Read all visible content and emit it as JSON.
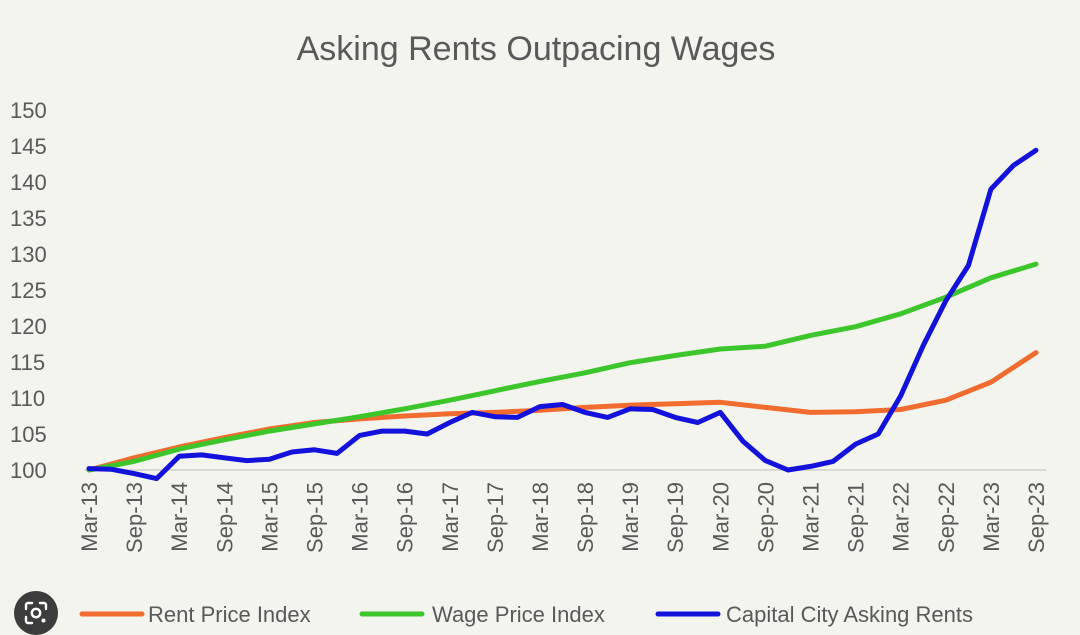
{
  "chart_data": {
    "type": "line",
    "title": "Asking Rents Outpacing Wages",
    "xlabel": "",
    "ylabel": "",
    "ylim": [
      100,
      150
    ],
    "yticks": [
      "100",
      "105",
      "110",
      "115",
      "120",
      "125",
      "130",
      "135",
      "140",
      "145",
      "150"
    ],
    "xtick_labels": [
      "Mar-13",
      "Sep-13",
      "Mar-14",
      "Sep-14",
      "Mar-15",
      "Sep-15",
      "Mar-16",
      "Sep-16",
      "Mar-17",
      "Sep-17",
      "Mar-18",
      "Sep-18",
      "Mar-19",
      "Sep-19",
      "Mar-20",
      "Sep-20",
      "Mar-21",
      "Sep-21",
      "Mar-22",
      "Sep-22",
      "Mar-23",
      "Sep-23"
    ],
    "grid": "horizontal-baseline-only",
    "legend": "bottom",
    "series": [
      {
        "name": "Rent Price Index",
        "color": "#f26b2f",
        "values": [
          100,
          101.7,
          103.2,
          104.5,
          105.7,
          106.6,
          107.1,
          107.5,
          107.8,
          108.0,
          108.3,
          108.7,
          109.0,
          109.2,
          109.4,
          108.7,
          108.0,
          108.1,
          108.4,
          109.7,
          112.2,
          116.3
        ]
      },
      {
        "name": "Wage Price Index",
        "color": "#3cc62c",
        "values": [
          100,
          101.2,
          102.9,
          104.2,
          105.4,
          106.4,
          107.4,
          108.5,
          109.7,
          111.0,
          112.3,
          113.5,
          114.9,
          115.9,
          116.8,
          117.2,
          118.7,
          119.9,
          121.7,
          124.0,
          126.7,
          128.6
        ]
      },
      {
        "name": "Capital City Asking Rents",
        "color": "#1212dc",
        "values": [
          100.2,
          100.1,
          99.5,
          98.8,
          101.9,
          102.1,
          101.7,
          101.3,
          101.5,
          102.5,
          102.8,
          102.3,
          104.8,
          105.4,
          105.4,
          105.0,
          106.6,
          108.0,
          107.4,
          107.3,
          108.8,
          109.1,
          108.0,
          107.3,
          108.5,
          108.4,
          107.3,
          106.6,
          108.0,
          104.0,
          101.3,
          100.0,
          100.5,
          101.2,
          103.6,
          105.0,
          110.3,
          117.3,
          123.5,
          128.4,
          139.0,
          142.3,
          144.4
        ]
      }
    ]
  },
  "ui": {
    "lens_icon": "google-lens-icon"
  }
}
